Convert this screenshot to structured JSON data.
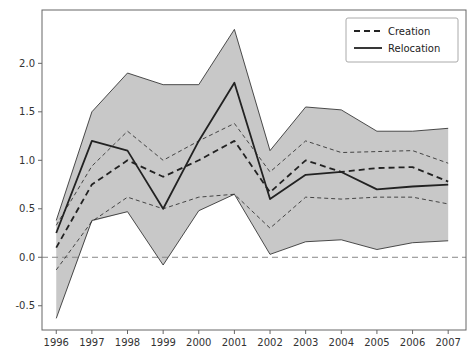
{
  "chart_data": {
    "type": "line",
    "x": [
      1996,
      1997,
      1998,
      1999,
      2000,
      2001,
      2002,
      2003,
      2004,
      2005,
      2006,
      2007
    ],
    "series": [
      {
        "name": "Creation",
        "color": "#222222",
        "line_style": "dashed",
        "values": [
          0.1,
          0.75,
          1.0,
          0.83,
          1.0,
          1.2,
          0.67,
          1.0,
          0.88,
          0.92,
          0.93,
          0.78
        ],
        "upper": [
          0.33,
          0.94,
          1.3,
          1.0,
          1.2,
          1.38,
          0.88,
          1.2,
          1.08,
          1.09,
          1.1,
          0.97
        ],
        "lower": [
          -0.13,
          0.37,
          0.62,
          0.5,
          0.62,
          0.65,
          0.3,
          0.62,
          0.6,
          0.62,
          0.62,
          0.55
        ]
      },
      {
        "name": "Relocation",
        "color": "#222222",
        "line_style": "solid",
        "values": [
          0.25,
          1.2,
          1.1,
          0.5,
          1.2,
          1.8,
          0.6,
          0.85,
          0.88,
          0.7,
          0.73,
          0.75
        ],
        "upper": [
          0.38,
          1.5,
          1.9,
          1.78,
          1.78,
          2.35,
          1.1,
          1.55,
          1.52,
          1.3,
          1.3,
          1.33
        ],
        "lower": [
          -0.63,
          0.38,
          0.47,
          -0.08,
          0.48,
          0.65,
          0.03,
          0.16,
          0.18,
          0.08,
          0.15,
          0.17
        ]
      }
    ],
    "band": {
      "color": "#c8c8c8",
      "upper": [
        0.38,
        1.5,
        1.9,
        1.78,
        1.78,
        2.35,
        1.1,
        1.55,
        1.52,
        1.3,
        1.3,
        1.33
      ],
      "lower": [
        -0.63,
        0.37,
        0.47,
        -0.08,
        0.48,
        0.65,
        0.03,
        0.16,
        0.18,
        0.08,
        0.15,
        0.17
      ]
    },
    "ref_line": {
      "value": 0,
      "color": "#888888",
      "line_style": "dashed"
    },
    "xlim": [
      1995.6,
      2007.5
    ],
    "xticks": [
      1996,
      1997,
      1998,
      1999,
      2000,
      2001,
      2002,
      2003,
      2004,
      2005,
      2006,
      2007
    ],
    "ylim": [
      -0.75,
      2.55
    ],
    "yticks": [
      -0.5,
      {
        "value": 0,
        "label": "0.0"
      },
      0.5,
      {
        "value": 1,
        "label": "1.0"
      },
      1.5,
      {
        "value": 2,
        "label": "2.0"
      }
    ],
    "grid": false,
    "legend": "upper right"
  }
}
